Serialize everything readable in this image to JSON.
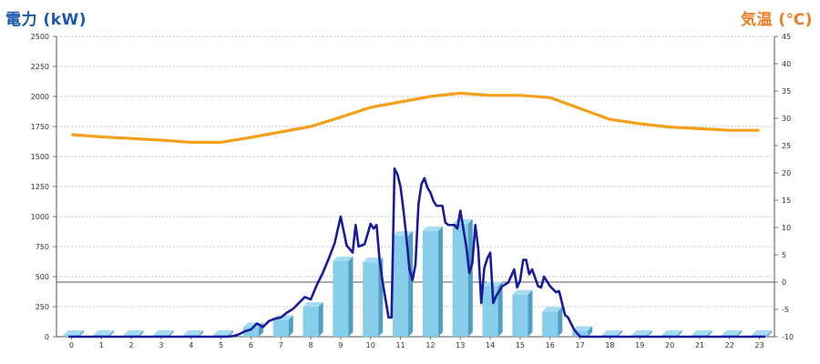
{
  "header": {
    "left_title": "電力 (kW)",
    "right_title": "気温 (℃)"
  },
  "colors": {
    "bar_front": "#87ceeb",
    "bar_side": "#4f9fc4",
    "bar_top": "#a6dcf2",
    "power_line": "#1a1a9c",
    "temp_line": "#f5a01c",
    "left_title": "#1a5aa8",
    "right_title": "#ee7d22"
  },
  "chart_data": {
    "type": "bar",
    "categories": [
      "0",
      "1",
      "2",
      "3",
      "4",
      "5",
      "6",
      "7",
      "8",
      "9",
      "10",
      "11",
      "12",
      "13",
      "14",
      "15",
      "16",
      "17",
      "18",
      "19",
      "20",
      "21",
      "22",
      "23"
    ],
    "y_left": {
      "label": "電力 (kW)",
      "lim": [
        0,
        2500
      ],
      "ticks": [
        0,
        250,
        500,
        750,
        1000,
        1250,
        1500,
        1750,
        2000,
        2250,
        2500
      ]
    },
    "y_right": {
      "label": "気温 (℃)",
      "lim": [
        -10,
        45
      ],
      "ticks": [
        -10,
        -5,
        0,
        5,
        10,
        15,
        20,
        25,
        30,
        35,
        40,
        45
      ]
    },
    "grid": true,
    "hourly_power": [
      0,
      0,
      0,
      0,
      0,
      0,
      80,
      140,
      250,
      630,
      620,
      840,
      880,
      940,
      420,
      350,
      210,
      50,
      0,
      0,
      0,
      0,
      0,
      0
    ],
    "temperature": {
      "x": [
        0,
        1,
        2,
        3,
        4,
        5,
        6,
        7,
        8,
        9,
        10,
        11,
        12,
        13,
        14,
        15,
        16,
        17,
        18,
        19,
        20,
        21,
        22,
        23
      ],
      "values": [
        27.0,
        26.6,
        26.3,
        26.0,
        25.6,
        25.6,
        26.5,
        27.5,
        28.5,
        30.2,
        32.0,
        33.0,
        34.0,
        34.6,
        34.2,
        34.2,
        33.8,
        31.8,
        29.8,
        29.0,
        28.4,
        28.1,
        27.8,
        27.8
      ]
    },
    "power_5min": {
      "x": [
        5.0,
        5.2,
        5.4,
        5.6,
        5.8,
        6.0,
        6.2,
        6.4,
        6.6,
        6.8,
        7.0,
        7.2,
        7.4,
        7.6,
        7.8,
        8.0,
        8.2,
        8.4,
        8.6,
        8.8,
        9.0,
        9.2,
        9.4,
        9.5,
        9.6,
        9.8,
        10.0,
        10.1,
        10.2,
        10.3,
        10.4,
        10.6,
        10.7,
        10.8,
        10.9,
        11.0,
        11.1,
        11.2,
        11.3,
        11.4,
        11.5,
        11.6,
        11.7,
        11.8,
        11.9,
        12.0,
        12.1,
        12.2,
        12.4,
        12.5,
        12.6,
        12.8,
        12.9,
        13.0,
        13.2,
        13.3,
        13.4,
        13.5,
        13.6,
        13.7,
        13.8,
        13.9,
        14.0,
        14.1,
        14.2,
        14.4,
        14.6,
        14.8,
        14.9,
        15.0,
        15.1,
        15.2,
        15.3,
        15.4,
        15.6,
        15.7,
        15.8,
        16.0,
        16.2,
        16.3,
        16.5,
        16.6,
        16.8,
        17.0,
        17.1
      ],
      "values": [
        0,
        0,
        5,
        20,
        45,
        60,
        110,
        80,
        130,
        150,
        160,
        200,
        230,
        280,
        330,
        310,
        430,
        530,
        650,
        780,
        1000,
        760,
        700,
        930,
        750,
        770,
        940,
        900,
        930,
        640,
        460,
        160,
        160,
        1400,
        1350,
        1250,
        1050,
        820,
        560,
        470,
        600,
        1100,
        1270,
        1320,
        1240,
        1200,
        1130,
        1090,
        1090,
        950,
        930,
        930,
        900,
        1050,
        750,
        530,
        610,
        930,
        730,
        280,
        570,
        650,
        700,
        280,
        340,
        420,
        450,
        560,
        410,
        470,
        640,
        640,
        520,
        560,
        420,
        410,
        500,
        420,
        370,
        380,
        180,
        160,
        60,
        0,
        0
      ]
    }
  }
}
